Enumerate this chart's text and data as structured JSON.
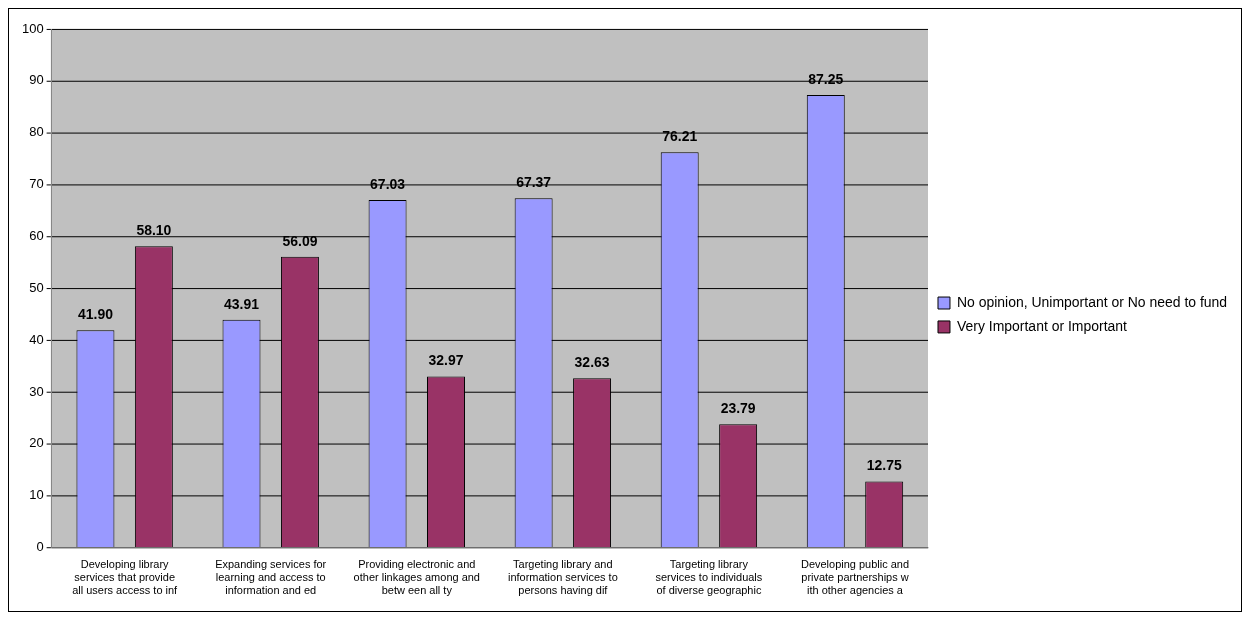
{
  "chart_data": {
    "type": "bar",
    "categories": [
      "Developing library services that provide all users access to inf",
      "Expanding services for learning and access to information and ed",
      "Providing electronic and other linkages among and betw een all ty",
      "Targeting library and information services to persons having dif",
      "Targeting library services to individuals of diverse geographic",
      "Developing public and private partnerships w ith other agencies a"
    ],
    "series": [
      {
        "name": "No opinion, Unimportant or No need to fund",
        "color": "#9999ff",
        "values": [
          41.9,
          43.91,
          67.03,
          67.37,
          76.21,
          87.25
        ]
      },
      {
        "name": "Very Important or Important",
        "color": "#993366",
        "values": [
          58.1,
          56.09,
          32.97,
          32.63,
          23.79,
          12.75
        ]
      }
    ],
    "value_labels": [
      [
        "41.90",
        "43.91",
        "67.03",
        "67.37",
        "76.21",
        "87.25"
      ],
      [
        "58.10",
        "56.09",
        "32.97",
        "32.63",
        "23.79",
        "12.75"
      ]
    ],
    "ylim": [
      0,
      100
    ],
    "yticks": [
      0,
      10,
      20,
      30,
      40,
      50,
      60,
      70,
      80,
      90,
      100
    ],
    "grid": "y",
    "legend": "right"
  }
}
